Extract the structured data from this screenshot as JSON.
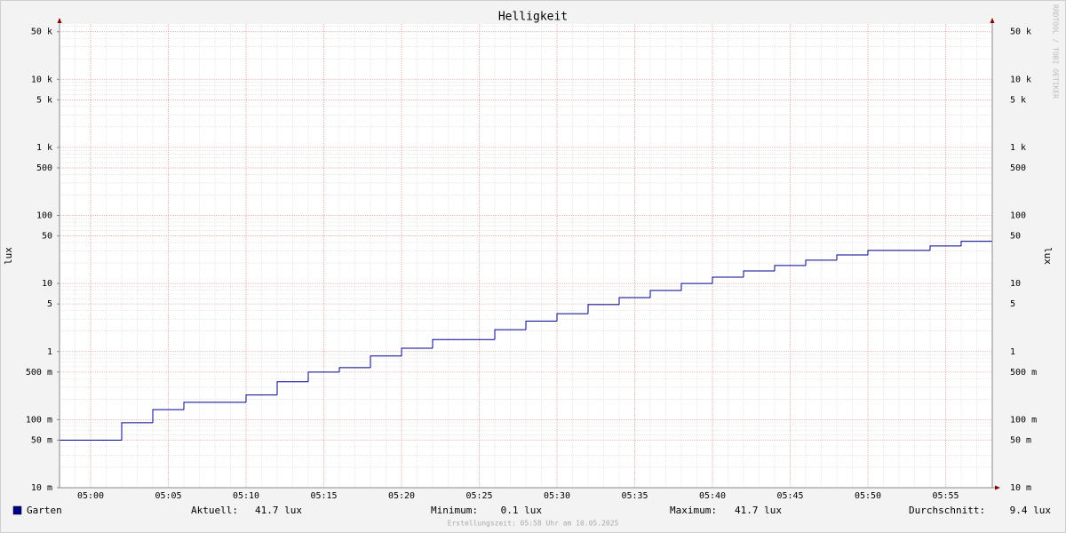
{
  "chart_data": {
    "type": "line",
    "step": "post",
    "title": "Helligkeit",
    "y_label": "lux",
    "y_scale": "log",
    "grid": true,
    "x": [
      298,
      302,
      304,
      306,
      310,
      312,
      314,
      316,
      318,
      320,
      322,
      326,
      328,
      330,
      332,
      334,
      336,
      338,
      340,
      342,
      344,
      346,
      348,
      350,
      354,
      356
    ],
    "series": [
      {
        "name": "Garten",
        "color": "#00008b",
        "values": [
          0.05,
          0.09,
          0.14,
          0.18,
          0.23,
          0.36,
          0.5,
          0.58,
          0.86,
          1.12,
          1.5,
          2.1,
          2.8,
          3.6,
          4.9,
          6.2,
          7.9,
          10,
          12.4,
          15.3,
          18.4,
          22,
          26.3,
          30.6,
          35.6,
          41.7
        ]
      }
    ],
    "xlim": [
      298,
      358
    ],
    "xticks": [
      {
        "value": 300,
        "label": "05:00"
      },
      {
        "value": 305,
        "label": "05:05"
      },
      {
        "value": 310,
        "label": "05:10"
      },
      {
        "value": 315,
        "label": "05:15"
      },
      {
        "value": 320,
        "label": "05:20"
      },
      {
        "value": 325,
        "label": "05:25"
      },
      {
        "value": 330,
        "label": "05:30"
      },
      {
        "value": 335,
        "label": "05:35"
      },
      {
        "value": 340,
        "label": "05:40"
      },
      {
        "value": 345,
        "label": "05:45"
      },
      {
        "value": 350,
        "label": "05:50"
      },
      {
        "value": 355,
        "label": "05:55"
      }
    ],
    "ylim": [
      0.01,
      65000
    ],
    "yticks": [
      {
        "value": 0.01,
        "label": "10 m"
      },
      {
        "value": 0.05,
        "label": "50 m"
      },
      {
        "value": 0.1,
        "label": "100 m"
      },
      {
        "value": 0.5,
        "label": "500 m"
      },
      1,
      5,
      10,
      50,
      100,
      500,
      {
        "value": 1000,
        "label": "1 k"
      },
      {
        "value": 5000,
        "label": "5 k"
      },
      {
        "value": 10000,
        "label": "10 k"
      },
      {
        "value": 50000,
        "label": "50 k"
      }
    ],
    "stats": [
      {
        "label": "Aktuell:",
        "value": "41.7 lux"
      },
      {
        "label": "Minimum:",
        "value": "0.1 lux"
      },
      {
        "label": "Maximum:",
        "value": "41.7 lux"
      },
      {
        "label": "Durchschnitt:",
        "value": "9.4 lux"
      }
    ],
    "footer": "Erstellungszeit: 05:58 Uhr am 10.05.2025",
    "watermark": "RRDTOOL / TOBI OETIKER"
  }
}
